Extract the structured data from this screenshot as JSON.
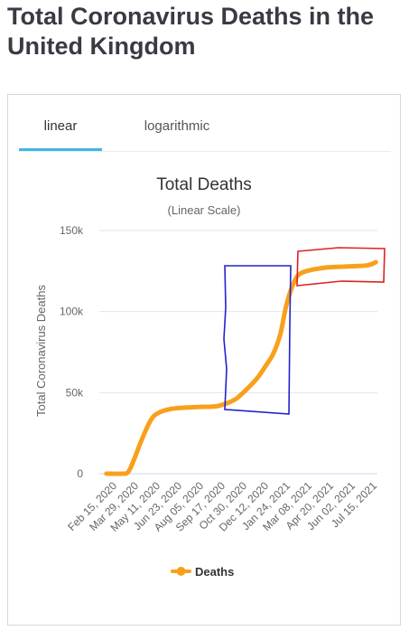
{
  "page": {
    "title": "Total Coronavirus Deaths in the United Kingdom"
  },
  "tabs": [
    {
      "label": "linear",
      "active": true
    },
    {
      "label": "logarithmic",
      "active": false
    }
  ],
  "colors": {
    "series": "#f8a01c",
    "tab_underline": "#41b6e6",
    "grid": "#e6e6e6",
    "baseline": "#ccd6eb",
    "blue_box": "#2222cc",
    "red_box": "#dd2222"
  },
  "chart_data": {
    "type": "line",
    "title": "Total Deaths",
    "subtitle": "(Linear Scale)",
    "ylabel": "Total Coronavirus Deaths",
    "xlabel": "",
    "ylim": [
      0,
      150000
    ],
    "yticks": [
      0,
      50000,
      100000,
      150000
    ],
    "ytick_labels": [
      "0",
      "50k",
      "100k",
      "150k"
    ],
    "grid": true,
    "legend": "bottom",
    "x_tick_labels": [
      "Feb 15, 2020",
      "Mar 29, 2020",
      "May 11, 2020",
      "Jun 23, 2020",
      "Aug 05, 2020",
      "Sep 17, 2020",
      "Oct 30, 2020",
      "Dec 12, 2020",
      "Jan 24, 2021",
      "Mar 08, 2021",
      "Apr 20, 2021",
      "Jun 02, 2021",
      "Jul 15, 2021"
    ],
    "series": [
      {
        "name": "Deaths",
        "x": [
          "2020-02-15",
          "2020-03-15",
          "2020-03-29",
          "2020-04-10",
          "2020-04-25",
          "2020-05-11",
          "2020-05-25",
          "2020-06-23",
          "2020-08-05",
          "2020-09-17",
          "2020-10-01",
          "2020-10-15",
          "2020-10-30",
          "2020-11-15",
          "2020-12-01",
          "2020-12-12",
          "2020-12-25",
          "2021-01-10",
          "2021-01-24",
          "2021-02-05",
          "2021-02-20",
          "2021-03-08",
          "2021-04-20",
          "2021-06-02",
          "2021-07-15",
          "2021-08-01"
        ],
        "values": [
          0,
          0,
          1000,
          9000,
          21000,
          32000,
          37000,
          40000,
          41000,
          41500,
          42500,
          44000,
          46500,
          51000,
          56000,
          60000,
          66000,
          74000,
          86000,
          104000,
          118000,
          124000,
          127000,
          127800,
          128500,
          130500
        ]
      }
    ]
  }
}
